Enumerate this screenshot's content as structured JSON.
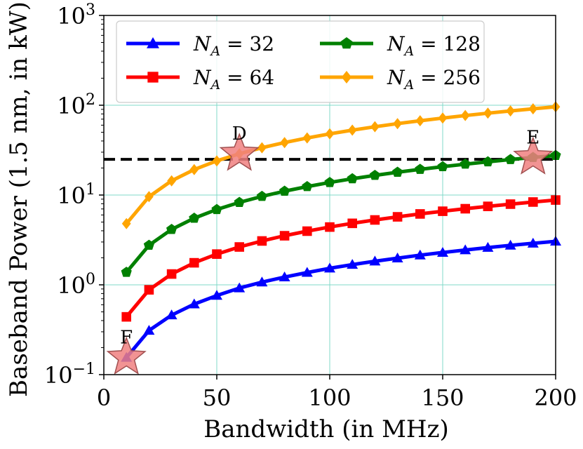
{
  "chart_data": {
    "type": "line",
    "xlabel": "Bandwidth (in MHz)",
    "ylabel": "Baseband Power (1.5 nm, in kW)",
    "yscale": "log",
    "xlim": [
      0,
      200
    ],
    "ylim": [
      0.1,
      1000
    ],
    "grid": true,
    "legend_location": "top",
    "x_ticks": [
      0,
      50,
      100,
      150,
      200
    ],
    "x_tick_labels": [
      "0",
      "50",
      "100",
      "150",
      "200"
    ],
    "y_ticks": [
      0.1,
      1,
      10,
      100,
      1000
    ],
    "y_tick_labels": [
      {
        "base": "10",
        "exp": "−1"
      },
      {
        "base": "10",
        "exp": "0"
      },
      {
        "base": "10",
        "exp": "1"
      },
      {
        "base": "10",
        "exp": "2"
      },
      {
        "base": "10",
        "exp": "3"
      }
    ],
    "x": [
      10,
      20,
      30,
      40,
      50,
      60,
      70,
      80,
      90,
      100,
      110,
      120,
      130,
      140,
      150,
      160,
      170,
      180,
      190,
      200
    ],
    "series": [
      {
        "name_var": "N",
        "name_sub": "A",
        "name_rest": " = 32",
        "color": "#0000ff",
        "marker": "triangle",
        "values": [
          0.155,
          0.31,
          0.46,
          0.61,
          0.76,
          0.92,
          1.07,
          1.22,
          1.37,
          1.53,
          1.68,
          1.83,
          1.98,
          2.14,
          2.29,
          2.44,
          2.6,
          2.75,
          2.9,
          3.05
        ]
      },
      {
        "name_var": "N",
        "name_sub": "A",
        "name_rest": " = 64",
        "color": "#ff0000",
        "marker": "square",
        "values": [
          0.44,
          0.88,
          1.32,
          1.76,
          2.2,
          2.64,
          3.08,
          3.52,
          3.96,
          4.4,
          4.84,
          5.28,
          5.72,
          6.16,
          6.6,
          7.04,
          7.48,
          7.92,
          8.36,
          8.8
        ]
      },
      {
        "name_var": "N",
        "name_sub": "A",
        "name_rest": " = 128",
        "color": "#008000",
        "marker": "pentagon",
        "values": [
          1.38,
          2.76,
          4.14,
          5.52,
          6.9,
          8.28,
          9.66,
          11.04,
          12.42,
          13.8,
          15.18,
          16.56,
          17.94,
          19.32,
          20.7,
          22.08,
          23.46,
          24.84,
          26.22,
          27.6
        ]
      },
      {
        "name_var": "N",
        "name_sub": "A",
        "name_rest": " = 256",
        "color": "#ffa500",
        "marker": "diamond",
        "values": [
          4.8,
          9.6,
          14.4,
          19.2,
          24.0,
          28.8,
          33.6,
          38.4,
          43.2,
          48.0,
          52.8,
          57.6,
          62.4,
          67.2,
          72.0,
          76.8,
          81.6,
          86.4,
          91.2,
          96.0
        ]
      }
    ],
    "threshold": {
      "y": 25,
      "style": "dashed",
      "color": "#000000"
    },
    "annotations": [
      {
        "label": "D",
        "x": 60,
        "y": 28.8
      },
      {
        "label": "E",
        "x": 190,
        "y": 26.2
      },
      {
        "label": "F",
        "x": 10,
        "y": 0.155
      }
    ],
    "star_color": "#f08080"
  }
}
